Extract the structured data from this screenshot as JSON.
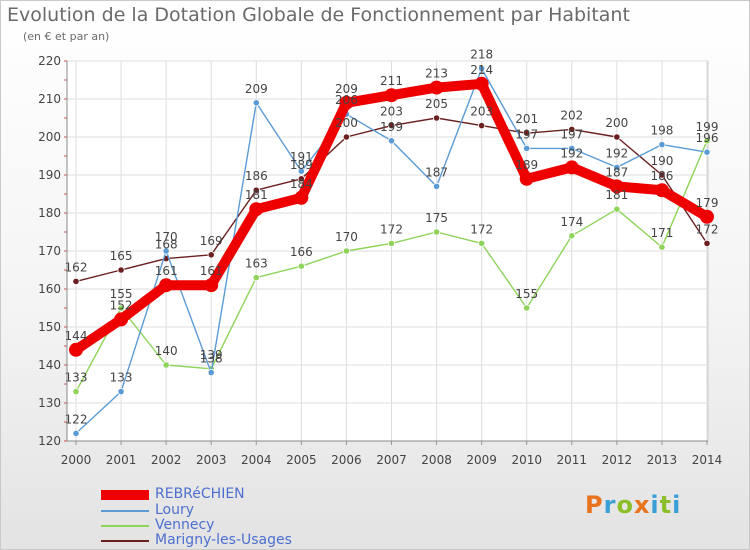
{
  "header": {
    "title": "Evolution de la Dotation Globale de Fonctionnement par Habitant",
    "subtitle": "(en € et par an)"
  },
  "logo": {
    "text": "Proxiti",
    "colors": [
      "#e8731c",
      "#3a9fd6",
      "#8bbf2a",
      "#e8731c",
      "#3a9fd6",
      "#8bbf2a",
      "#3a9fd6"
    ]
  },
  "chart_data": {
    "type": "line",
    "x": [
      2000,
      2001,
      2002,
      2003,
      2004,
      2005,
      2006,
      2007,
      2008,
      2009,
      2010,
      2011,
      2012,
      2013,
      2014
    ],
    "ylim": [
      120,
      220
    ],
    "yticks": [
      120,
      130,
      140,
      150,
      160,
      170,
      180,
      190,
      200,
      210,
      220
    ],
    "grid": true,
    "legend_position": "bottom-left",
    "series": [
      {
        "name": "Marigny-les-Usages",
        "color": "#6b1f1f",
        "values": [
          162,
          165,
          168,
          169,
          186,
          189,
          200,
          203,
          205,
          203,
          201,
          202,
          200,
          190,
          172
        ]
      },
      {
        "name": "Vennecy",
        "color": "#8fd45a",
        "values": [
          133,
          155,
          140,
          139,
          163,
          166,
          170,
          172,
          175,
          172,
          155,
          174,
          181,
          171,
          199
        ]
      },
      {
        "name": "Loury",
        "color": "#5b9bd5",
        "values": [
          122,
          133,
          170,
          138,
          209,
          191,
          206,
          199,
          187,
          218,
          197,
          197,
          192,
          198,
          196
        ]
      },
      {
        "name": "REBRéCHIEN",
        "color": "#ee0000",
        "values": [
          144,
          152,
          161,
          161,
          181,
          184,
          209,
          211,
          213,
          214,
          189,
          192,
          187,
          186,
          179
        ]
      }
    ]
  },
  "legend": [
    {
      "name": "REBRéCHIEN",
      "color": "#ee0000"
    },
    {
      "name": "Loury",
      "color": "#5b9bd5"
    },
    {
      "name": "Vennecy",
      "color": "#8fd45a"
    },
    {
      "name": "Marigny-les-Usages",
      "color": "#6b1f1f"
    }
  ]
}
